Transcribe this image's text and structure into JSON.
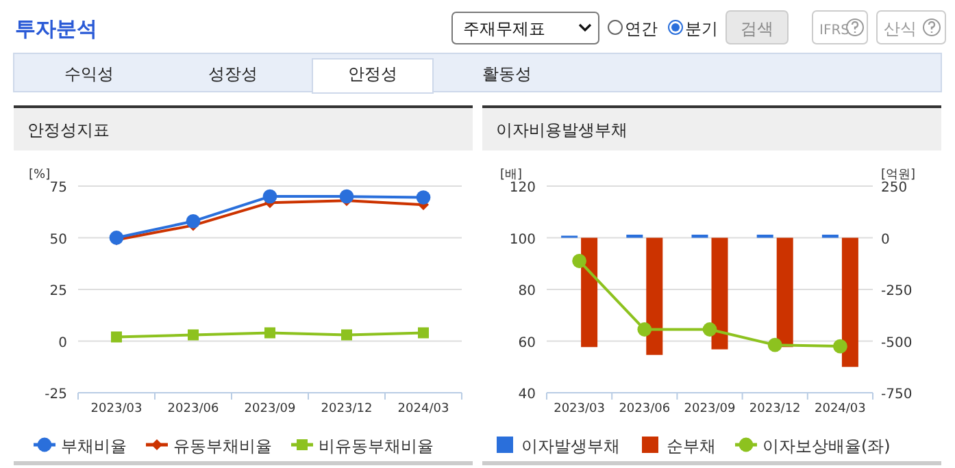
{
  "chart_data": [
    {
      "type": "other",
      "title": "투자분석",
      "annotations": [
        "주재무제표",
        "연간",
        "분기",
        "검색",
        "IFRS",
        "산식",
        "수익성",
        "성장성",
        "안정성",
        "활동성"
      ]
    },
    {
      "type": "line",
      "title": "안정성지표",
      "ylabel": "[%]",
      "categories": [
        "2023/03",
        "2023/06",
        "2023/09",
        "2023/12",
        "2024/03"
      ],
      "ylim": [
        -25,
        75
      ],
      "yticks": [
        -25,
        0,
        25,
        50,
        75
      ],
      "grid": "y",
      "legend": "bottom",
      "series": [
        {
          "name": "부채비율",
          "color": "#2a6fdb",
          "marker": "circle",
          "values": [
            50,
            58,
            70,
            70,
            69.5
          ]
        },
        {
          "name": "유동부채비율",
          "color": "#cc3300",
          "marker": "diamond",
          "values": [
            49,
            56,
            67,
            68,
            66
          ]
        },
        {
          "name": "비유동부채비율",
          "color": "#8dc21f",
          "marker": "square",
          "values": [
            2,
            3,
            4,
            3,
            4
          ]
        }
      ]
    },
    {
      "type": "bar",
      "title": "이자비용발생부채",
      "ylabel": "[배]",
      "y2label": "[억원]",
      "categories": [
        "2023/03",
        "2023/06",
        "2023/09",
        "2023/12",
        "2024/03"
      ],
      "ylim": [
        40,
        120
      ],
      "yticks": [
        40,
        60,
        80,
        100,
        120
      ],
      "y2lim": [
        -750,
        250
      ],
      "y2ticks": [
        -750,
        -500,
        -250,
        0,
        250
      ],
      "grid": "y",
      "legend": "bottom",
      "series": [
        {
          "name": "이자발생부채",
          "type": "bar",
          "axis": "y2",
          "color": "#2a6fdb",
          "values": [
            10,
            15,
            15,
            15,
            15
          ]
        },
        {
          "name": "순부채",
          "type": "bar",
          "axis": "y2",
          "color": "#cc3300",
          "values": [
            -529,
            -567,
            -540,
            -529,
            -625
          ]
        },
        {
          "name": "이자보상배율(좌)",
          "type": "line",
          "axis": "y",
          "color": "#8dc21f",
          "marker": "circle",
          "values": [
            91,
            64.5,
            64.5,
            58.5,
            58
          ]
        }
      ]
    }
  ]
}
